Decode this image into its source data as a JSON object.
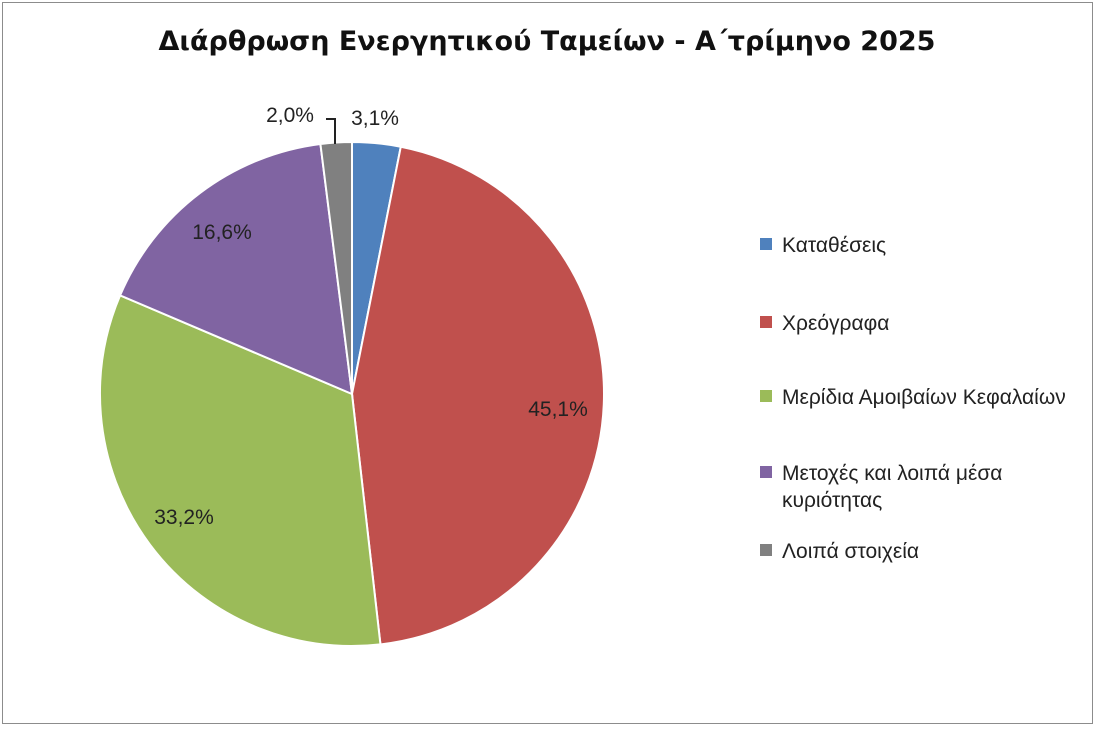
{
  "chart_data": {
    "type": "pie",
    "title": "Διάρθρωση Ενεργητικού Ταμείων - Α΄τρίμηνο 2025",
    "legend_position": "right",
    "slices": [
      {
        "name": "Καταθέσεις",
        "value": 3.1,
        "label": "3,1%",
        "color": "#4f81bd"
      },
      {
        "name": "Χρεόγραφα",
        "value": 45.1,
        "label": "45,1%",
        "color": "#c0504d"
      },
      {
        "name": "Μερίδια Αμοιβαίων Κεφαλαίων",
        "value": 33.2,
        "label": "33,2%",
        "color": "#9bbb59"
      },
      {
        "name": "Μετοχές και λοιπά μέσα κυριότητας",
        "value": 16.6,
        "label": "16,6%",
        "color": "#8064a2"
      },
      {
        "name": "Λοιπά στοιχεία",
        "value": 2.0,
        "label": "2,0%",
        "color": "#808080"
      }
    ]
  }
}
